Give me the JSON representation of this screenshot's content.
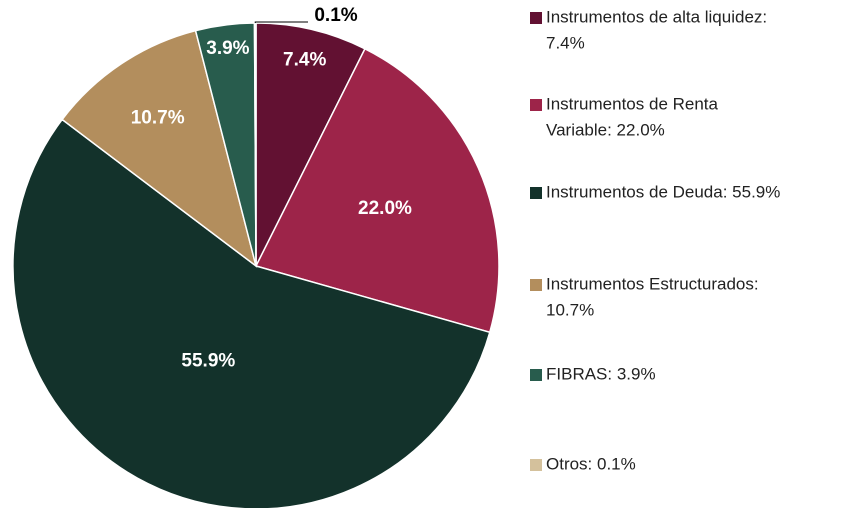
{
  "chart_data": {
    "type": "pie",
    "values": [
      7.4,
      22.0,
      55.9,
      10.7,
      3.9,
      0.1
    ],
    "value_labels": [
      "7.4%",
      "22.0%",
      "55.9%",
      "10.7%",
      "3.9%",
      "0.1%"
    ],
    "labels": [
      [
        "Instrumentos de alta liquidez:",
        "7.4%"
      ],
      [
        "Instrumentos de Renta",
        "Variable: 22.0%"
      ],
      [
        "Instrumentos de Deuda: 55.9%"
      ],
      [
        "Instrumentos Estructurados:",
        "10.7%"
      ],
      [
        "FIBRAS: 3.9%"
      ],
      [
        "Otros: 0.1%"
      ]
    ],
    "colors": [
      "#621132",
      "#9d2449",
      "#13322b",
      "#b38e5d",
      "#285c4d",
      "#d4c19c"
    ]
  }
}
